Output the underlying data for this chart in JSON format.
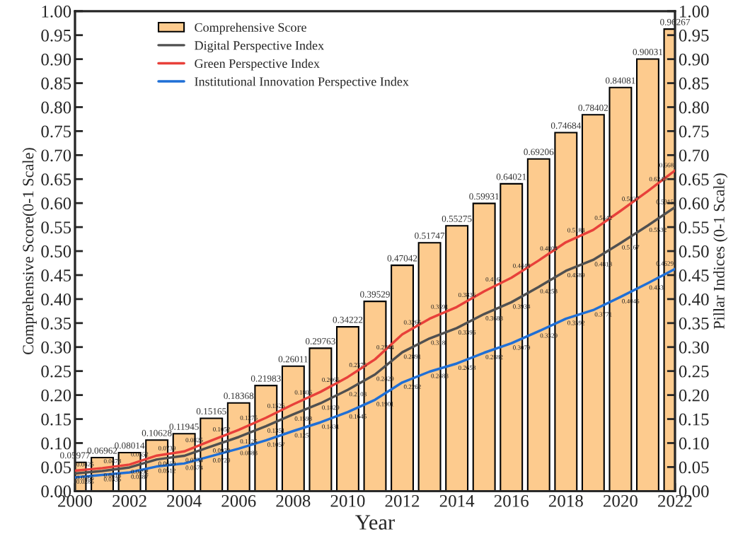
{
  "chart_data": {
    "type": "bar",
    "xlabel": "Year",
    "ylabel": "Comprehensive Score(0-1 Scale)",
    "y2label": "Pillar Indices (0-1 Scale)",
    "x": [
      2000,
      2001,
      2002,
      2003,
      2004,
      2005,
      2006,
      2007,
      2008,
      2009,
      2010,
      2011,
      2012,
      2013,
      2014,
      2015,
      2016,
      2017,
      2018,
      2019,
      2020,
      2021,
      2022
    ],
    "xlim": [
      2000,
      2022
    ],
    "xticks": [
      2000,
      {
        "value": 2001,
        "label": null
      },
      2002,
      {
        "value": 2003,
        "label": null
      },
      2004,
      {
        "value": 2005,
        "label": null
      },
      2006,
      {
        "value": 2007,
        "label": null
      },
      2008,
      {
        "value": 2009,
        "label": null
      },
      2010,
      {
        "value": 2011,
        "label": null
      },
      2012,
      {
        "value": 2013,
        "label": null
      },
      2014,
      {
        "value": 2015,
        "label": null
      },
      2016,
      {
        "value": 2017,
        "label": null
      },
      2018,
      {
        "value": 2019,
        "label": null
      },
      2020,
      {
        "value": 2021,
        "label": null
      },
      2022
    ],
    "ylim": [
      0,
      1
    ],
    "yticks": [
      {
        "value": 0,
        "label": "0.00"
      },
      {
        "value": 0.05,
        "label": "0.05"
      },
      {
        "value": 0.1,
        "label": "0.10"
      },
      {
        "value": 0.15,
        "label": "0.15"
      },
      {
        "value": 0.2,
        "label": "0.20"
      },
      {
        "value": 0.25,
        "label": "0.25"
      },
      {
        "value": 0.3,
        "label": "0.30"
      },
      {
        "value": 0.35,
        "label": "0.35"
      },
      {
        "value": 0.4,
        "label": "0.40"
      },
      {
        "value": 0.45,
        "label": "0.45"
      },
      {
        "value": 0.5,
        "label": "0.50"
      },
      {
        "value": 0.55,
        "label": "0.55"
      },
      {
        "value": 0.6,
        "label": "0.60"
      },
      {
        "value": 0.65,
        "label": "0.65"
      },
      {
        "value": 0.7,
        "label": "0.70"
      },
      {
        "value": 0.75,
        "label": "0.75"
      },
      {
        "value": 0.8,
        "label": "0.80"
      },
      {
        "value": 0.85,
        "label": "0.85"
      },
      {
        "value": 0.9,
        "label": "0.90"
      },
      {
        "value": 0.95,
        "label": "0.95"
      },
      {
        "value": 1,
        "label": "1.00"
      }
    ],
    "y2lim": [
      0,
      1
    ],
    "y2ticks": [
      {
        "value": 0,
        "label": "0.00"
      },
      {
        "value": 0.05,
        "label": "0.05"
      },
      {
        "value": 0.1,
        "label": "0.10"
      },
      {
        "value": 0.15,
        "label": "0.15"
      },
      {
        "value": 0.2,
        "label": "0.20"
      },
      {
        "value": 0.25,
        "label": "0.25"
      },
      {
        "value": 0.3,
        "label": "0.30"
      },
      {
        "value": 0.35,
        "label": "0.35"
      },
      {
        "value": 0.4,
        "label": "0.40"
      },
      {
        "value": 0.45,
        "label": "0.45"
      },
      {
        "value": 0.5,
        "label": "0.50"
      },
      {
        "value": 0.55,
        "label": "0.55"
      },
      {
        "value": 0.6,
        "label": "0.60"
      },
      {
        "value": 0.65,
        "label": "0.65"
      },
      {
        "value": 0.7,
        "label": "0.70"
      },
      {
        "value": 0.75,
        "label": "0.75"
      },
      {
        "value": 0.8,
        "label": "0.80"
      },
      {
        "value": 0.85,
        "label": "0.85"
      },
      {
        "value": 0.9,
        "label": "0.90"
      },
      {
        "value": 0.95,
        "label": "0.95"
      },
      {
        "value": 1,
        "label": "1.00"
      }
    ],
    "series": [
      {
        "name": "Comprehensive Score",
        "color": "#fdcb8e",
        "values": [
          0.05977,
          0.06962,
          0.08014,
          0.10628,
          0.11945,
          0.15165,
          0.18368,
          0.21983,
          0.26011,
          0.29763,
          0.34222,
          0.39529,
          0.47042,
          0.51747,
          0.55275,
          0.59931,
          0.64021,
          0.69206,
          0.74684,
          0.78402,
          0.84081,
          0.90031,
          0.96267
        ]
      },
      {
        "name": "Digital Perspective Index",
        "type": "line",
        "axis": "y2",
        "color": "#505050",
        "values": [
          0.0365,
          0.0418,
          0.0492,
          0.0659,
          0.0734,
          0.0932,
          0.1125,
          0.1351,
          0.1598,
          0.1829,
          0.2108,
          0.2429,
          0.2891,
          0.318,
          0.3396,
          0.3688,
          0.3934,
          0.4253,
          0.4589,
          0.4818,
          0.5167,
          0.5532,
          0.5915
        ]
      },
      {
        "name": "Green Perspective Index",
        "type": "line",
        "axis": "y2",
        "color": "#e8403a",
        "values": [
          0.0425,
          0.0478,
          0.0552,
          0.0739,
          0.0825,
          0.1052,
          0.1275,
          0.1526,
          0.1806,
          0.2066,
          0.2375,
          0.2744,
          0.3265,
          0.3591,
          0.3836,
          0.416,
          0.4444,
          0.4804,
          0.5184,
          0.5442,
          0.5837,
          0.6249,
          0.668
        ]
      },
      {
        "name": "Institutional Innovation Perspective Index",
        "type": "line",
        "axis": "y2",
        "color": "#1f6fd6",
        "values": [
          0.0285,
          0.0335,
          0.0387,
          0.0512,
          0.0574,
          0.0729,
          0.0883,
          0.1057,
          0.125,
          0.1431,
          0.1645,
          0.1901,
          0.2262,
          0.2488,
          0.2658,
          0.2882,
          0.3079,
          0.3329,
          0.3592,
          0.3771,
          0.4045,
          0.433,
          0.4629
        ]
      }
    ],
    "data_labels": true,
    "legend": "top left",
    "grid": false,
    "marker": "none",
    "line_style": "solid"
  }
}
